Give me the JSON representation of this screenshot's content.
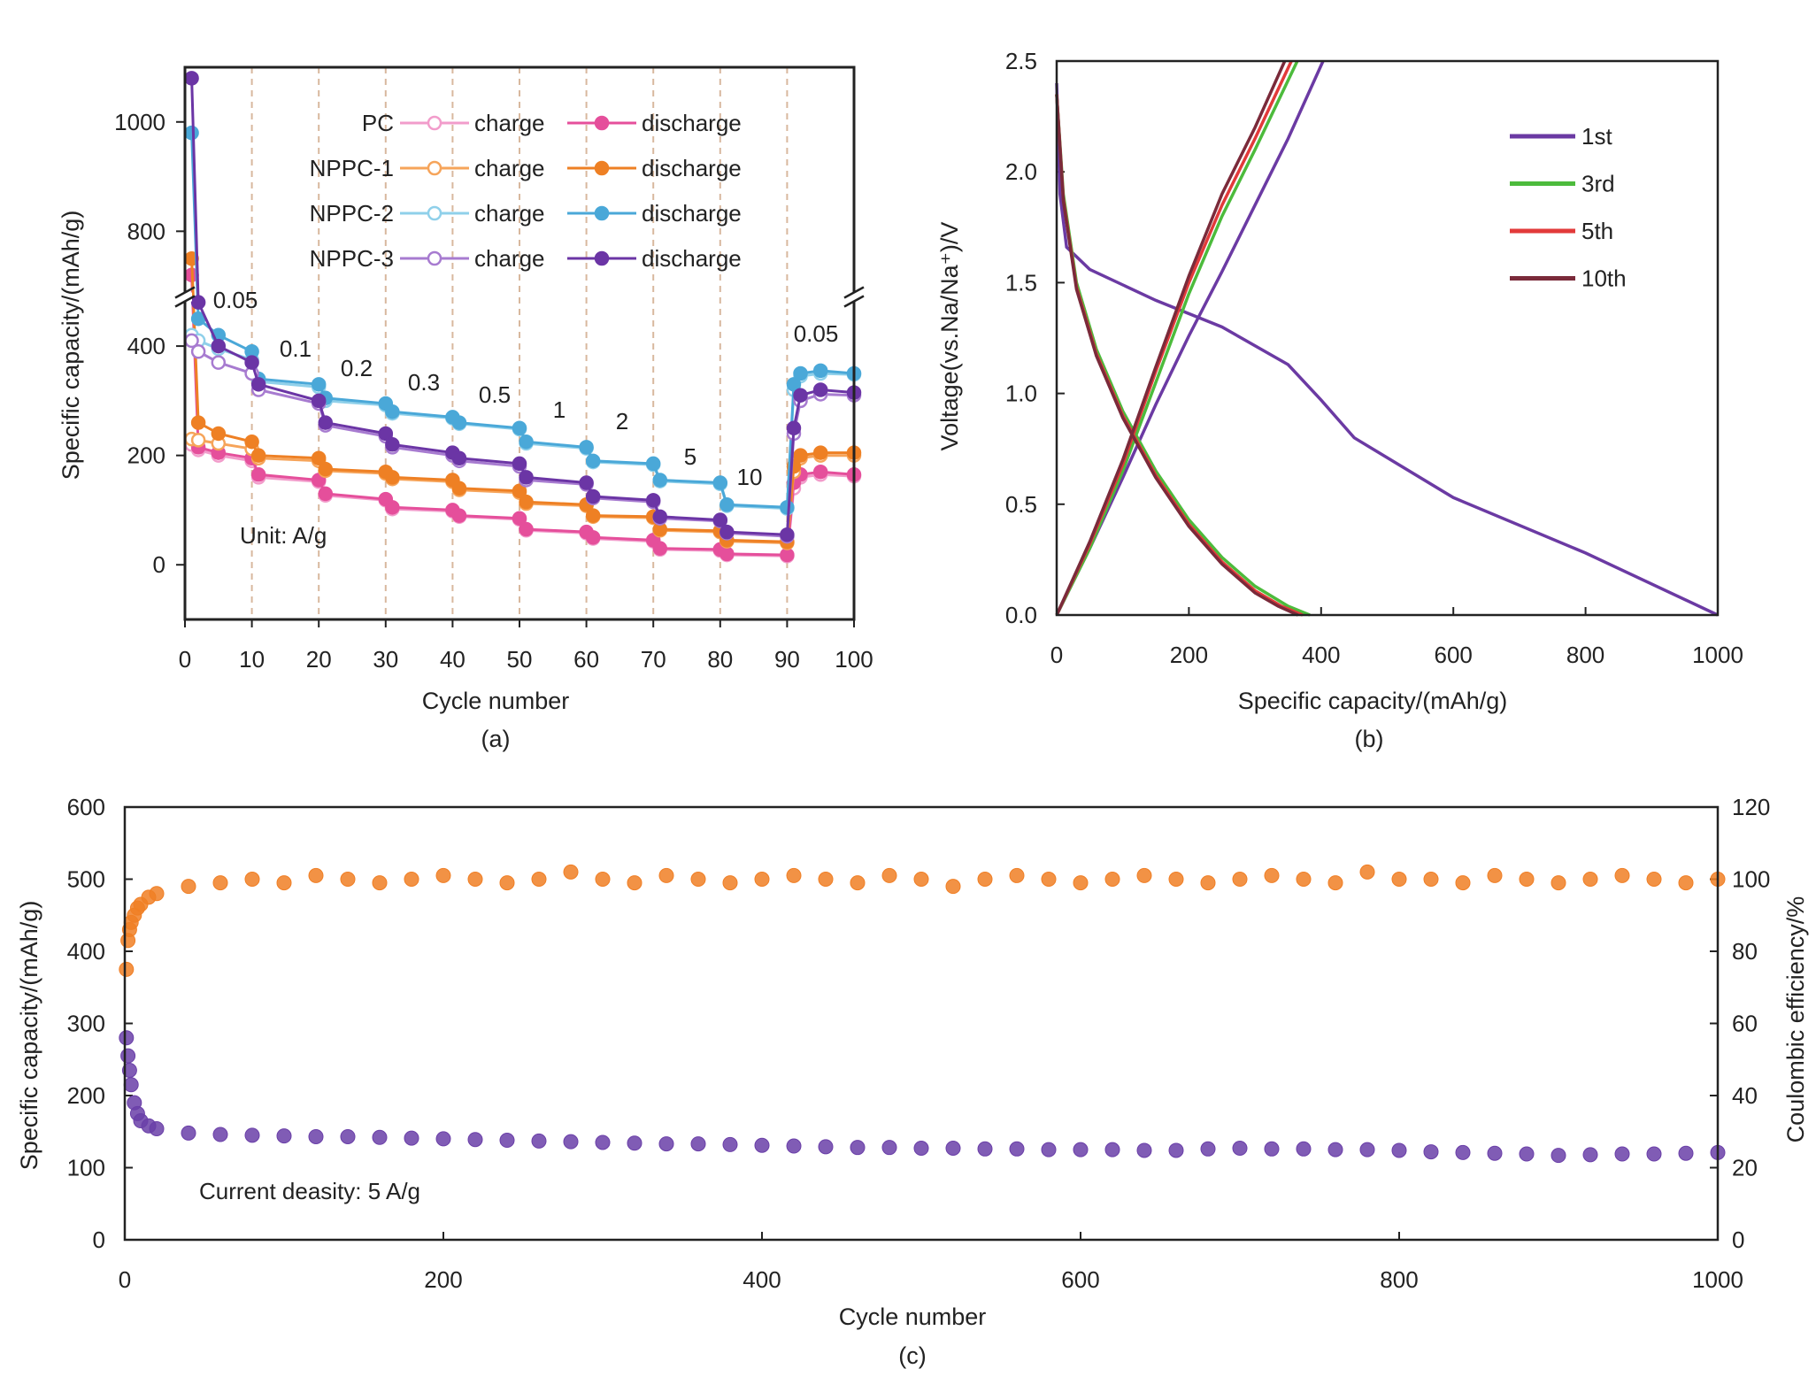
{
  "chart_data": [
    {
      "type": "line",
      "caption": "(a)",
      "xlabel": "Cycle number",
      "ylabel": "Specific capacity/(mAh/g)",
      "xlim": [
        0,
        100
      ],
      "xticks": [
        0,
        10,
        20,
        30,
        40,
        50,
        60,
        70,
        80,
        90,
        100
      ],
      "ylim": [
        -100,
        1100
      ],
      "yticks": [
        0,
        200,
        400,
        800,
        1000
      ],
      "ybreak": [
        490,
        680
      ],
      "xgrid": true,
      "x": [
        1,
        2,
        5,
        10,
        11,
        20,
        21,
        30,
        31,
        40,
        41,
        50,
        51,
        60,
        61,
        70,
        71,
        80,
        81,
        90,
        91,
        92,
        95,
        100
      ],
      "series": [
        {
          "name": "PC",
          "lines": [
            {
              "name": "charge",
              "color": "#f29ccb",
              "marker": "hollow",
              "values": [
                220,
                210,
                200,
                190,
                160,
                152,
                127,
                118,
                102,
                98,
                88,
                83,
                63,
                58,
                48,
                43,
                28,
                26,
                18,
                16,
                140,
                160,
                165,
                162
              ]
            },
            {
              "name": "discharge",
              "color": "#e54f9b",
              "marker": "filled",
              "values": [
                720,
                215,
                205,
                195,
                165,
                155,
                130,
                120,
                105,
                100,
                90,
                85,
                65,
                60,
                50,
                45,
                30,
                28,
                20,
                18,
                150,
                165,
                170,
                165
              ]
            }
          ]
        },
        {
          "name": "NPPC-1",
          "lines": [
            {
              "name": "charge",
              "color": "#f6a45a",
              "marker": "hollow",
              "values": [
                230,
                228,
                222,
                212,
                195,
                190,
                172,
                167,
                157,
                152,
                137,
                132,
                112,
                108,
                88,
                86,
                63,
                60,
                43,
                40,
                170,
                195,
                200,
                200
              ]
            },
            {
              "name": "discharge",
              "color": "#ee8024",
              "marker": "filled",
              "values": [
                750,
                260,
                240,
                225,
                200,
                195,
                175,
                170,
                160,
                155,
                140,
                135,
                115,
                110,
                90,
                88,
                65,
                62,
                45,
                42,
                180,
                200,
                205,
                205
              ]
            }
          ]
        },
        {
          "name": "NPPC-2",
          "lines": [
            {
              "name": "charge",
              "color": "#8fd0ea",
              "marker": "hollow",
              "values": [
                420,
                410,
                395,
                375,
                335,
                325,
                300,
                292,
                277,
                268,
                258,
                248,
                222,
                213,
                188,
                183,
                153,
                148,
                108,
                103,
                320,
                345,
                350,
                348
              ]
            },
            {
              "name": "discharge",
              "color": "#4aa8d8",
              "marker": "filled",
              "values": [
                980,
                450,
                420,
                390,
                340,
                330,
                305,
                295,
                280,
                270,
                260,
                250,
                225,
                215,
                190,
                185,
                155,
                150,
                110,
                105,
                330,
                350,
                355,
                350
              ]
            }
          ]
        },
        {
          "name": "NPPC-3",
          "lines": [
            {
              "name": "charge",
              "color": "#a77bd0",
              "marker": "hollow",
              "values": [
                410,
                390,
                370,
                350,
                320,
                295,
                255,
                235,
                215,
                200,
                190,
                180,
                155,
                147,
                122,
                115,
                85,
                80,
                58,
                52,
                240,
                300,
                312,
                310
              ]
            },
            {
              "name": "discharge",
              "color": "#6b35a5",
              "marker": "filled",
              "values": [
                1080,
                480,
                400,
                370,
                330,
                300,
                260,
                240,
                220,
                205,
                195,
                185,
                160,
                150,
                125,
                118,
                88,
                82,
                60,
                55,
                250,
                310,
                320,
                315
              ]
            }
          ]
        }
      ],
      "annotations": [
        "0.05",
        "0.1",
        "0.2",
        "0.3",
        "0.5",
        "1",
        "2",
        "5",
        "10",
        "0.05",
        "Unit: A/g"
      ]
    },
    {
      "type": "line",
      "caption": "(b)",
      "xlabel": "Specific capacity/(mAh/g)",
      "ylabel": "Voltage(vs.Na/Na⁺)/V",
      "xlim": [
        0,
        1000
      ],
      "xticks": [
        0,
        200,
        400,
        600,
        800,
        1000
      ],
      "ylim": [
        0,
        2.5
      ],
      "yticks": [
        {
          "value": 0,
          "label": "0.0"
        },
        0.5,
        {
          "value": 1,
          "label": "1.0"
        },
        1.5,
        {
          "value": 2,
          "label": "2.0"
        },
        2.5
      ],
      "legend": "upper right",
      "series": [
        {
          "name": "1st",
          "color": "#6b3aa3",
          "curves": [
            {
              "x": [
                0,
                5,
                15,
                50,
                150,
                250,
                350,
                400,
                450,
                600,
                800,
                1000
              ],
              "values": [
                2.4,
                1.9,
                1.66,
                1.56,
                1.42,
                1.3,
                1.13,
                0.97,
                0.8,
                0.53,
                0.28,
                0
              ]
            },
            {
              "x": [
                0,
                50,
                100,
                150,
                200,
                250,
                300,
                350,
                403
              ],
              "values": [
                0,
                0.3,
                0.62,
                0.95,
                1.26,
                1.55,
                1.85,
                2.15,
                2.5
              ]
            }
          ]
        },
        {
          "name": "3rd",
          "color": "#4cbb3c",
          "curves": [
            {
              "x": [
                0,
                10,
                30,
                60,
                100,
                150,
                200,
                250,
                300,
                350,
                383
              ],
              "values": [
                2.35,
                1.9,
                1.5,
                1.2,
                0.92,
                0.65,
                0.43,
                0.26,
                0.13,
                0.04,
                0
              ]
            },
            {
              "x": [
                0,
                50,
                100,
                150,
                200,
                250,
                300,
                364
              ],
              "values": [
                0,
                0.3,
                0.65,
                1.05,
                1.45,
                1.8,
                2.1,
                2.5
              ]
            }
          ]
        },
        {
          "name": "5th",
          "color": "#e23a3a",
          "curves": [
            {
              "x": [
                0,
                10,
                30,
                60,
                100,
                150,
                200,
                250,
                300,
                340,
                372
              ],
              "values": [
                2.35,
                1.88,
                1.48,
                1.18,
                0.9,
                0.63,
                0.41,
                0.24,
                0.11,
                0.04,
                0
              ]
            },
            {
              "x": [
                0,
                50,
                100,
                150,
                200,
                250,
                300,
                355
              ],
              "values": [
                0,
                0.32,
                0.68,
                1.1,
                1.5,
                1.85,
                2.15,
                2.5
              ]
            }
          ]
        },
        {
          "name": "10th",
          "color": "#7a2a3a",
          "curves": [
            {
              "x": [
                0,
                10,
                30,
                60,
                100,
                150,
                200,
                250,
                300,
                335,
                365
              ],
              "values": [
                2.35,
                1.87,
                1.47,
                1.17,
                0.89,
                0.62,
                0.4,
                0.23,
                0.1,
                0.04,
                0
              ]
            },
            {
              "x": [
                0,
                50,
                100,
                150,
                200,
                250,
                300,
                345
              ],
              "values": [
                0,
                0.33,
                0.7,
                1.12,
                1.53,
                1.9,
                2.2,
                2.5
              ]
            }
          ]
        }
      ]
    },
    {
      "type": "scatter",
      "caption": "(c)",
      "xlabel": "Cycle number",
      "ylabel": "Specific capacity/(mAh/g)",
      "y2label": "Coulombic efficiency/%",
      "xlim": [
        0,
        1000
      ],
      "xticks": [
        0,
        200,
        400,
        600,
        800,
        1000
      ],
      "ylim": [
        0,
        600
      ],
      "yticks": [
        0,
        100,
        200,
        300,
        400,
        500,
        600
      ],
      "y2lim": [
        0,
        120
      ],
      "y2ticks": [
        0,
        20,
        40,
        60,
        80,
        100,
        120
      ],
      "x": [
        1,
        2,
        3,
        4,
        6,
        8,
        10,
        15,
        20,
        40,
        60,
        80,
        100,
        120,
        140,
        160,
        180,
        200,
        220,
        240,
        260,
        280,
        300,
        320,
        340,
        360,
        380,
        400,
        420,
        440,
        460,
        480,
        500,
        520,
        540,
        560,
        580,
        600,
        620,
        640,
        660,
        680,
        700,
        720,
        740,
        760,
        780,
        800,
        820,
        840,
        860,
        880,
        900,
        920,
        940,
        960,
        980,
        1000
      ],
      "series": [
        {
          "color": "#6a3fa8",
          "values": [
            280,
            255,
            235,
            215,
            190,
            175,
            165,
            158,
            154,
            148,
            146,
            145,
            144,
            143,
            143,
            142,
            141,
            140,
            139,
            138,
            137,
            136,
            135,
            134,
            133,
            133,
            132,
            131,
            130,
            129,
            128,
            128,
            127,
            127,
            126,
            126,
            125,
            125,
            125,
            124,
            124,
            126,
            127,
            126,
            126,
            125,
            125,
            124,
            122,
            121,
            120,
            119,
            117,
            118,
            119,
            119,
            120,
            121
          ]
        },
        {
          "color": "#f07f25",
          "axis": "y2",
          "values": [
            75,
            83,
            86,
            88,
            90,
            92,
            93,
            95,
            96,
            98,
            99,
            100,
            99,
            101,
            100,
            99,
            100,
            101,
            100,
            99,
            100,
            102,
            100,
            99,
            101,
            100,
            99,
            100,
            101,
            100,
            99,
            101,
            100,
            98,
            100,
            101,
            100,
            99,
            100,
            101,
            100,
            99,
            100,
            101,
            100,
            99,
            102,
            100,
            100,
            99,
            101,
            100,
            99,
            100,
            101,
            100,
            99,
            100
          ]
        }
      ],
      "annotations": [
        "Current deasity: 5 A/g"
      ]
    }
  ]
}
